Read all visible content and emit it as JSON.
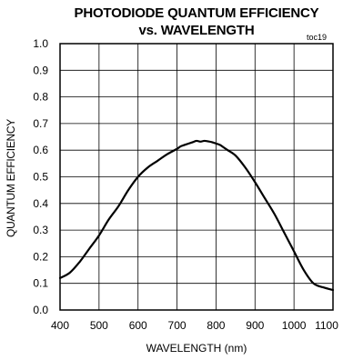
{
  "chart_data": {
    "type": "line",
    "title_lines": [
      "PHOTODIODE QUANTUM EFFICIENCY",
      "vs. WAVELENGTH"
    ],
    "note": "toc19",
    "xlabel": "WAVELENGTH (nm)",
    "ylabel": "QUANTUM EFFICIENCY",
    "xlim": [
      400,
      1100
    ],
    "ylim": [
      0.0,
      1.0
    ],
    "xticks": [
      400,
      500,
      600,
      700,
      800,
      900,
      1000,
      1100
    ],
    "xtick_labels": [
      "400",
      "500",
      "600",
      "700",
      "800",
      "900",
      "1000",
      "1100"
    ],
    "yticks": [
      0.0,
      0.1,
      0.2,
      0.3,
      0.4,
      0.5,
      0.6,
      0.7,
      0.8,
      0.9,
      1.0
    ],
    "ytick_labels": [
      "0.0",
      "0.1",
      "0.2",
      "0.3",
      "0.4",
      "0.5",
      "0.6",
      "0.7",
      "0.8",
      "0.9",
      "1.0"
    ],
    "grid": true,
    "line_color": "#000000",
    "series": [
      {
        "x": [
          400,
          425,
          450,
          475,
          500,
          525,
          550,
          575,
          600,
          625,
          650,
          675,
          700,
          710,
          720,
          730,
          740,
          750,
          760,
          770,
          780,
          790,
          800,
          810,
          820,
          830,
          850,
          875,
          900,
          925,
          950,
          975,
          1000,
          1025,
          1050,
          1075,
          1100
        ],
        "y": [
          0.12,
          0.14,
          0.18,
          0.23,
          0.28,
          0.34,
          0.39,
          0.45,
          0.5,
          0.535,
          0.56,
          0.585,
          0.605,
          0.615,
          0.62,
          0.625,
          0.63,
          0.635,
          0.632,
          0.635,
          0.633,
          0.63,
          0.625,
          0.62,
          0.61,
          0.6,
          0.58,
          0.535,
          0.48,
          0.42,
          0.36,
          0.29,
          0.22,
          0.15,
          0.1,
          0.085,
          0.075
        ]
      }
    ]
  }
}
